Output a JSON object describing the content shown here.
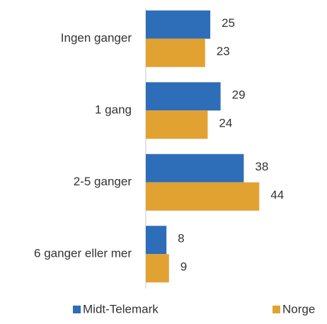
{
  "chart_data": {
    "type": "bar",
    "orientation": "horizontal",
    "categories": [
      "Ingen ganger",
      "1 gang",
      "2-5 ganger",
      "6 ganger eller mer"
    ],
    "series": [
      {
        "name": "Midt-Telemark",
        "color": "#2e6db8",
        "values": [
          25,
          29,
          38,
          8
        ]
      },
      {
        "name": "Norge",
        "color": "#e2a232",
        "values": [
          23,
          24,
          44,
          9
        ]
      }
    ],
    "xlim": [
      0,
      70
    ],
    "legend": "bottom"
  }
}
